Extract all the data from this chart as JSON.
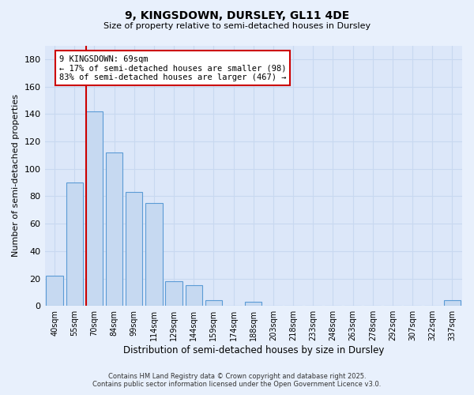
{
  "title": "9, KINGSDOWN, DURSLEY, GL11 4DE",
  "subtitle": "Size of property relative to semi-detached houses in Dursley",
  "xlabel": "Distribution of semi-detached houses by size in Dursley",
  "ylabel": "Number of semi-detached properties",
  "bar_labels": [
    "40sqm",
    "55sqm",
    "70sqm",
    "84sqm",
    "99sqm",
    "114sqm",
    "129sqm",
    "144sqm",
    "159sqm",
    "174sqm",
    "188sqm",
    "203sqm",
    "218sqm",
    "233sqm",
    "248sqm",
    "263sqm",
    "278sqm",
    "292sqm",
    "307sqm",
    "322sqm",
    "337sqm"
  ],
  "bar_values": [
    22,
    90,
    142,
    112,
    83,
    75,
    18,
    15,
    4,
    0,
    3,
    0,
    0,
    0,
    0,
    0,
    0,
    0,
    0,
    0,
    4
  ],
  "bar_color": "#c6d9f1",
  "bar_edge_color": "#5b9bd5",
  "marker_color": "#cc0000",
  "ylim": [
    0,
    190
  ],
  "yticks": [
    0,
    20,
    40,
    60,
    80,
    100,
    120,
    140,
    160,
    180
  ],
  "bg_color": "#e8f0fc",
  "plot_bg_color": "#dce7f9",
  "grid_color": "#c8d8f0",
  "annotation_title": "9 KINGSDOWN: 69sqm",
  "annotation_line1": "← 17% of semi-detached houses are smaller (98)",
  "annotation_line2": "83% of semi-detached houses are larger (467) →",
  "footer_line1": "Contains HM Land Registry data © Crown copyright and database right 2025.",
  "footer_line2": "Contains public sector information licensed under the Open Government Licence v3.0."
}
